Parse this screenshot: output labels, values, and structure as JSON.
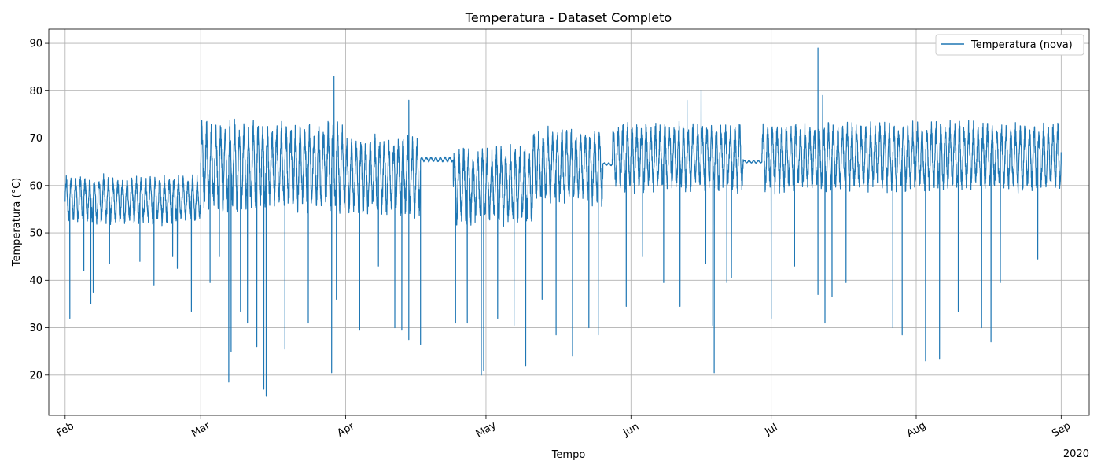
{
  "chart_data": {
    "type": "line",
    "title": "Temperatura - Dataset Completo",
    "xlabel": "Tempo",
    "ylabel": "Temperatura (°C)",
    "x_offset_label": "2020",
    "ylim": [
      11.5,
      93
    ],
    "yticks": [
      20,
      30,
      40,
      50,
      60,
      70,
      80,
      90
    ],
    "xlim": [
      -3.5,
      219
    ],
    "xticks": [
      {
        "day": 0,
        "label": "Feb"
      },
      {
        "day": 29,
        "label": "Mar"
      },
      {
        "day": 60,
        "label": "Apr"
      },
      {
        "day": 90,
        "label": "May"
      },
      {
        "day": 121,
        "label": "Jun"
      },
      {
        "day": 151,
        "label": "Jul"
      },
      {
        "day": 182,
        "label": "Aug"
      },
      {
        "day": 213,
        "label": "Sep"
      }
    ],
    "grid": true,
    "legend": {
      "position": "top-right"
    },
    "color": "#1f77b4",
    "series": [
      {
        "name": "Temperatura (nova)",
        "x_unit": "days since 2020-02-01",
        "segments": [
          {
            "start": 0,
            "end": 29,
            "base": 57,
            "amp": 4.5,
            "dips": [
              [
                1,
                32
              ],
              [
                4,
                42
              ],
              [
                5.5,
                35
              ],
              [
                6,
                37.5
              ],
              [
                9.5,
                43.5
              ],
              [
                16,
                44
              ],
              [
                19,
                39
              ],
              [
                23,
                45
              ],
              [
                24,
                42.5
              ],
              [
                27,
                33.5
              ]
            ]
          },
          {
            "start": 29,
            "end": 60,
            "base": 64,
            "amp": 8.5,
            "dips": [
              [
                31,
                39.5
              ],
              [
                33,
                45
              ],
              [
                35,
                18.5
              ],
              [
                35.5,
                25
              ],
              [
                37.5,
                33.5
              ],
              [
                39,
                31
              ],
              [
                41,
                26
              ],
              [
                42.5,
                17
              ],
              [
                43,
                15.5
              ],
              [
                47,
                25.5
              ],
              [
                52,
                31
              ],
              [
                57,
                20.5
              ],
              [
                58,
                36
              ]
            ]
          },
          {
            "start": 60,
            "end": 76,
            "base": 62,
            "amp": 7.5,
            "dips": [
              [
                63,
                29.5
              ],
              [
                67,
                43
              ],
              [
                70.5,
                30
              ],
              [
                72,
                29.5
              ],
              [
                73.5,
                27.5
              ],
              [
                76,
                26.5
              ]
            ]
          },
          {
            "start": 76,
            "end": 83,
            "base": 65.5,
            "amp": 0.5,
            "dips": []
          },
          {
            "start": 83,
            "end": 100,
            "base": 60,
            "amp": 7.5,
            "dips": [
              [
                83.5,
                31
              ],
              [
                86,
                31
              ],
              [
                89,
                20
              ],
              [
                89.5,
                21
              ],
              [
                92.5,
                32
              ],
              [
                96,
                30.5
              ],
              [
                98.5,
                22
              ]
            ]
          },
          {
            "start": 100,
            "end": 115,
            "base": 64,
            "amp": 7,
            "dips": [
              [
                102,
                36
              ],
              [
                105,
                28.5
              ],
              [
                108.5,
                24
              ],
              [
                112,
                30
              ],
              [
                114,
                28.5
              ]
            ]
          },
          {
            "start": 115,
            "end": 117,
            "base": 64.5,
            "amp": 0.3,
            "dips": []
          },
          {
            "start": 117,
            "end": 145,
            "base": 66,
            "amp": 6.5,
            "dips": [
              [
                120,
                34.5
              ],
              [
                123.5,
                45
              ],
              [
                128,
                39.5
              ],
              [
                131.5,
                34.5
              ],
              [
                137,
                43.5
              ],
              [
                138.5,
                30.5
              ],
              [
                138.8,
                20.5
              ],
              [
                141.5,
                39.5
              ],
              [
                142.5,
                40.5
              ]
            ]
          },
          {
            "start": 145,
            "end": 149,
            "base": 65,
            "amp": 0.3,
            "dips": []
          },
          {
            "start": 149,
            "end": 213,
            "base": 66,
            "amp": 6.5,
            "dips": [
              [
                151,
                32
              ],
              [
                156,
                43
              ],
              [
                161,
                37
              ],
              [
                162.5,
                31
              ],
              [
                164,
                36.5
              ],
              [
                167,
                39.5
              ],
              [
                177,
                30
              ],
              [
                179,
                28.5
              ],
              [
                184,
                23
              ],
              [
                187,
                23.5
              ],
              [
                191,
                33.5
              ],
              [
                196,
                30
              ],
              [
                198,
                27
              ],
              [
                200,
                39.5
              ],
              [
                208,
                44.5
              ]
            ]
          }
        ],
        "peaks": [
          [
            57.5,
            83
          ],
          [
            73.5,
            78
          ],
          [
            136,
            80
          ],
          [
            161,
            89
          ],
          [
            133,
            78
          ],
          [
            162,
            79
          ]
        ]
      }
    ]
  }
}
